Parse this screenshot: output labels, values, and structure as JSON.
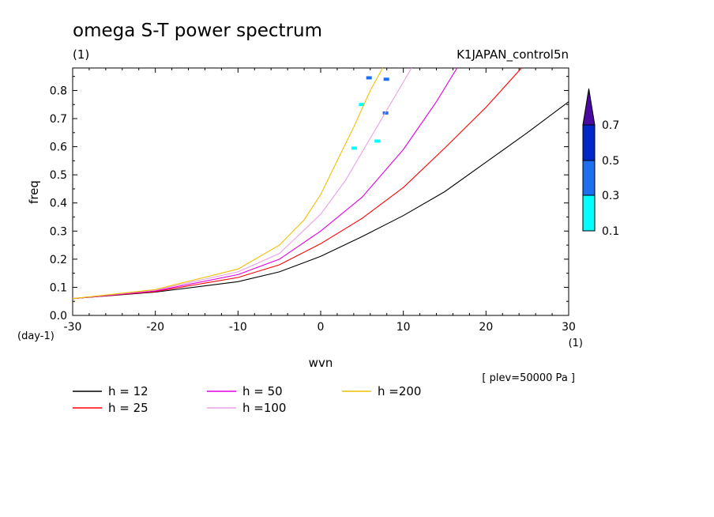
{
  "chart_data": {
    "type": "line",
    "title": "omega S-T power spectrum",
    "title_unit": "(1)",
    "run_name": "K1JAPAN_control5n",
    "xlabel": "wvn",
    "ylabel": "freq",
    "x_unit": "(1)",
    "y_unit": "(day-1)",
    "note": "[ plev=50000 Pa ]",
    "xlim": [
      -30,
      30
    ],
    "ylim": [
      0,
      0.88
    ],
    "x_ticks": [
      "-30",
      "-20",
      "-10",
      "0",
      "10",
      "20",
      "30"
    ],
    "y_ticks": [
      "0.0",
      "0.1",
      "0.2",
      "0.3",
      "0.4",
      "0.5",
      "0.6",
      "0.7",
      "0.8"
    ],
    "series": [
      {
        "name": "h = 12",
        "color": "#000000",
        "x": [
          -30,
          -20,
          -10,
          -5,
          0,
          5,
          10,
          15,
          20,
          25,
          30
        ],
        "y": [
          0.06,
          0.083,
          0.12,
          0.155,
          0.21,
          0.28,
          0.355,
          0.44,
          0.545,
          0.65,
          0.76
        ]
      },
      {
        "name": "h = 25",
        "color": "#ff0000",
        "x": [
          -30,
          -20,
          -10,
          -5,
          0,
          5,
          10,
          15,
          20,
          24.3
        ],
        "y": [
          0.06,
          0.085,
          0.135,
          0.18,
          0.255,
          0.345,
          0.455,
          0.595,
          0.74,
          0.88
        ]
      },
      {
        "name": "h = 50",
        "color": "#e000e0",
        "x": [
          -30,
          -20,
          -10,
          -5,
          0,
          5,
          10,
          14,
          16.5
        ],
        "y": [
          0.06,
          0.087,
          0.145,
          0.2,
          0.3,
          0.42,
          0.59,
          0.76,
          0.88
        ]
      },
      {
        "name": "h =100",
        "color": "#e8a0e8",
        "x": [
          -30,
          -20,
          -10,
          -5,
          0,
          3,
          6,
          9,
          11
        ],
        "y": [
          0.06,
          0.09,
          0.155,
          0.22,
          0.36,
          0.48,
          0.63,
          0.78,
          0.88
        ]
      },
      {
        "name": "h =200",
        "color": "#f0c000",
        "x": [
          -30,
          -20,
          -10,
          -5,
          -2,
          0,
          2,
          4,
          6,
          7.5
        ],
        "y": [
          0.06,
          0.092,
          0.165,
          0.25,
          0.34,
          0.43,
          0.55,
          0.67,
          0.8,
          0.88
        ]
      }
    ],
    "colorbar": {
      "levels": [
        "0.1",
        "0.3",
        "0.5",
        "0.7"
      ],
      "colors": [
        "#00ffff",
        "#1e6ef0",
        "#0028c8",
        "#4a0aa0"
      ]
    },
    "contour_patches": [
      {
        "x": 5.8,
        "y": 0.845,
        "level": "0.3"
      },
      {
        "x": 7.9,
        "y": 0.84,
        "level": "0.3"
      },
      {
        "x": 4.9,
        "y": 0.75,
        "level": "0.1"
      },
      {
        "x": 7.8,
        "y": 0.72,
        "level": "0.3"
      },
      {
        "x": 6.8,
        "y": 0.62,
        "level": "0.1"
      },
      {
        "x": 4.0,
        "y": 0.595,
        "level": "0.1"
      }
    ]
  }
}
